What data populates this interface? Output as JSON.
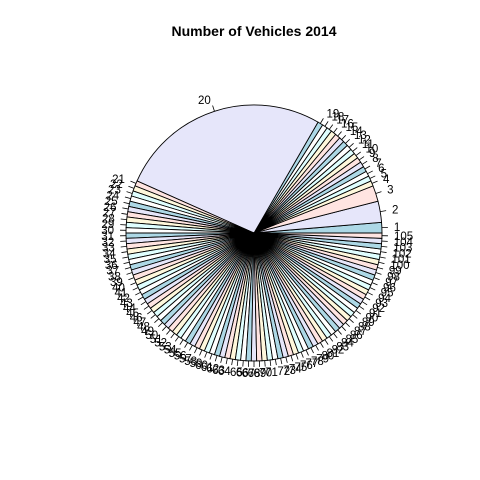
{
  "chart_data": {
    "type": "pie",
    "title": "Number of Vehicles 2014",
    "categories": [
      "1",
      "2",
      "3",
      "4",
      "5",
      "6",
      "7",
      "8",
      "9",
      "10",
      "11",
      "12",
      "13",
      "14",
      "15",
      "16",
      "17",
      "18",
      "19",
      "20",
      "21",
      "22",
      "23",
      "24",
      "25",
      "26",
      "27",
      "28",
      "29",
      "30",
      "31",
      "32",
      "33",
      "34",
      "35",
      "36",
      "37",
      "38",
      "39",
      "40",
      "41",
      "42",
      "43",
      "44",
      "45",
      "46",
      "47",
      "48",
      "49",
      "50",
      "51",
      "52",
      "53",
      "54",
      "55",
      "56",
      "57",
      "58",
      "59",
      "60",
      "61",
      "62",
      "63",
      "64",
      "65",
      "66",
      "67",
      "68",
      "69",
      "70",
      "71",
      "72",
      "73",
      "74",
      "75",
      "76",
      "77",
      "78",
      "79",
      "80",
      "81",
      "82",
      "83",
      "84",
      "85",
      "86",
      "87",
      "88",
      "89",
      "90",
      "91",
      "92",
      "93",
      "94",
      "95",
      "96",
      "97",
      "98",
      "99",
      "100",
      "101",
      "102",
      "103",
      "104",
      "105"
    ],
    "values": [
      2,
      4,
      3,
      1,
      1,
      1,
      1,
      1,
      1,
      1,
      1,
      1,
      1,
      1,
      1,
      1,
      1,
      1,
      1,
      40,
      1,
      1,
      1,
      1,
      1,
      1,
      1,
      1,
      1,
      1,
      1,
      1,
      1,
      1,
      1,
      1,
      1,
      1,
      1,
      1,
      1,
      1,
      1,
      1,
      1,
      1,
      1,
      1,
      1,
      1,
      1,
      1,
      1,
      1,
      1,
      1,
      1,
      1,
      1,
      1,
      1,
      1,
      1,
      1,
      1,
      1,
      1,
      1,
      1,
      1,
      1,
      1,
      1,
      1,
      1,
      1,
      1,
      1,
      1,
      1,
      1,
      1,
      1,
      1,
      1,
      1,
      1,
      1,
      1,
      1,
      1,
      1,
      1,
      1,
      1,
      1,
      1,
      1,
      1,
      1,
      1,
      1,
      1,
      1,
      1
    ],
    "colors": [
      "#add8e6",
      "#e6e6fa",
      "#ffe4e1",
      "#fff8dc",
      "#e0ffff",
      "#ffffff"
    ],
    "direction": "counterclockwise",
    "start_angle_deg": 0
  }
}
